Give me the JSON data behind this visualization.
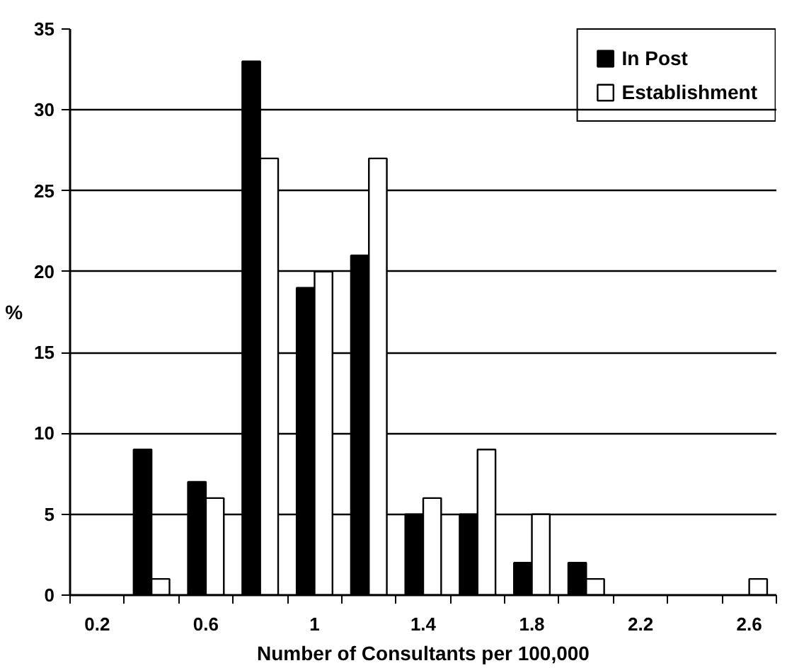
{
  "chart_data": {
    "type": "bar",
    "xlabel": "Number of Consultants per 100,000",
    "ylabel": "%",
    "categories": [
      "0.2",
      null,
      "0.6",
      null,
      "1",
      null,
      "1.4",
      null,
      "1.8",
      null,
      "2.2",
      null,
      "2.6"
    ],
    "series": [
      {
        "name": "In Post",
        "color": "#000000",
        "values": [
          0,
          9,
          7,
          33,
          19,
          21,
          5,
          5,
          2,
          2,
          0,
          0,
          0
        ]
      },
      {
        "name": "Establishment",
        "color": "#ffffff",
        "values": [
          0,
          1,
          6,
          27,
          20,
          27,
          6,
          9,
          5,
          1,
          0,
          0,
          1
        ]
      }
    ],
    "ylim": [
      0,
      35
    ],
    "yticks": [
      0,
      5,
      10,
      15,
      20,
      25,
      30,
      35
    ],
    "grid": "y",
    "legend": "top right"
  }
}
